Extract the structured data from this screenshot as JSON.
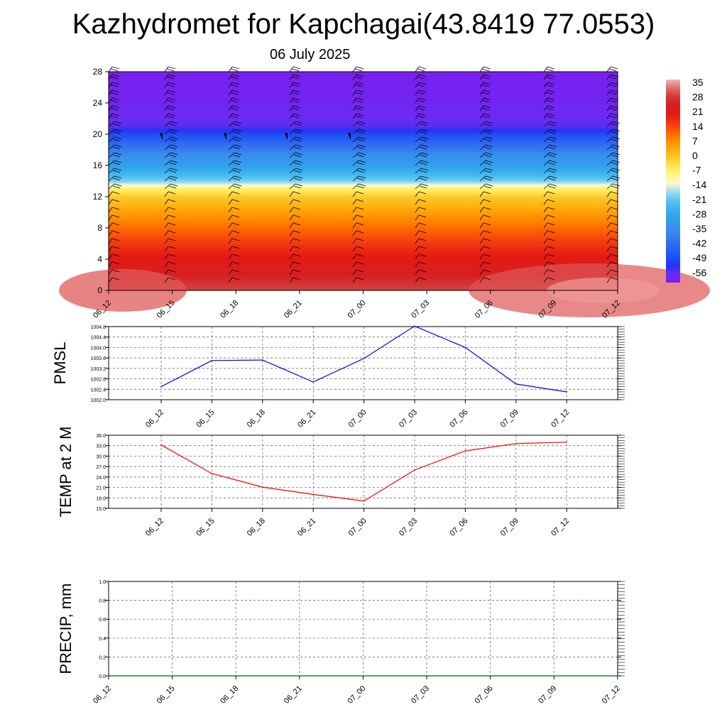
{
  "title": "Kazhydromet for Kapchagai(43.8419 77.0553)",
  "subtitle": "06 July 2025",
  "colors": {
    "pmsl_line": "#0000ee",
    "temp_line": "#ee0000",
    "precip_line": "#006400",
    "grid": "#555555",
    "barb": "#000000"
  },
  "chart_data": [
    {
      "type": "heatmap",
      "title": "",
      "xlabel": "",
      "ylabel": "",
      "x_ticks": [
        "06_12",
        "06_15",
        "06_18",
        "06_21",
        "07_00",
        "07_03",
        "07_06",
        "07_09",
        "07_12"
      ],
      "y_ticks": [
        "0",
        "4",
        "8",
        "12",
        "16",
        "20",
        "24",
        "28"
      ],
      "ylim": [
        0,
        28
      ],
      "colorbar": {
        "labels": [
          "35",
          "28",
          "21",
          "14",
          "7",
          "0",
          "-7",
          "-14",
          "-21",
          "-28",
          "-35",
          "-42",
          "-49",
          "-56"
        ],
        "range": [
          -60,
          38
        ]
      },
      "temperature_profile": {
        "levels": [
          0,
          2,
          4,
          6,
          8,
          10,
          12,
          13,
          14,
          15,
          16,
          17,
          18,
          19,
          20,
          21,
          22,
          23,
          24,
          26,
          28
        ],
        "values": [
          31,
          26,
          22,
          17,
          12,
          6,
          0,
          -6,
          -18,
          -24,
          -29,
          -33,
          -38,
          -43,
          -48,
          -55,
          -56,
          -57,
          -58,
          -59,
          -60
        ]
      },
      "wind_barb_columns": [
        "06_12",
        "06_15",
        "06_18",
        "06_21",
        "07_00",
        "07_03",
        "07_06",
        "07_09",
        "07_12"
      ]
    },
    {
      "type": "line",
      "title": "",
      "ylabel": "PMSL",
      "xlabel": "",
      "categories": [
        "06_12",
        "06_15",
        "06_18",
        "06_21",
        "07_00",
        "07_03",
        "07_06",
        "07_09",
        "07_12"
      ],
      "values": [
        1002.5,
        1003.5,
        1003.52,
        1002.68,
        1003.58,
        1004.82,
        1004.0,
        1002.6,
        1002.3
      ],
      "ylim": [
        1002.0,
        1004.8
      ],
      "y_ticks": [
        "1002.0",
        "1002.4",
        "1002.8",
        "1003.2",
        "1003.6",
        "1004.0",
        "1004.4",
        "1004.8"
      ],
      "grid": true
    },
    {
      "type": "line",
      "title": "",
      "ylabel": "TEMP at 2 M",
      "xlabel": "",
      "categories": [
        "06_12",
        "06_15",
        "06_18",
        "06_21",
        "07_00",
        "07_03",
        "07_06",
        "07_09",
        "07_12"
      ],
      "values": [
        33.2,
        25.0,
        21.1,
        19.0,
        17.1,
        26.0,
        31.5,
        33.6,
        34.0
      ],
      "ylim": [
        15.0,
        36.0
      ],
      "y_ticks": [
        "15.0",
        "18.0",
        "21.0",
        "24.0",
        "27.0",
        "30.0",
        "33.0",
        "36.0"
      ],
      "grid": true
    },
    {
      "type": "line",
      "title": "",
      "ylabel": "PRECIP, mm",
      "xlabel": "",
      "x_ticks": [
        "06_12",
        "06_15",
        "06_18",
        "06_21",
        "07_00",
        "07_03",
        "07_06",
        "07_09",
        "07_12"
      ],
      "values": [
        0,
        0,
        0,
        0,
        0,
        0,
        0,
        0,
        0
      ],
      "ylim": [
        0.0,
        1.0
      ],
      "y_ticks": [
        "0.0",
        "0.2",
        "0.4",
        "0.6",
        "0.8",
        "1.0"
      ],
      "grid": true
    }
  ]
}
